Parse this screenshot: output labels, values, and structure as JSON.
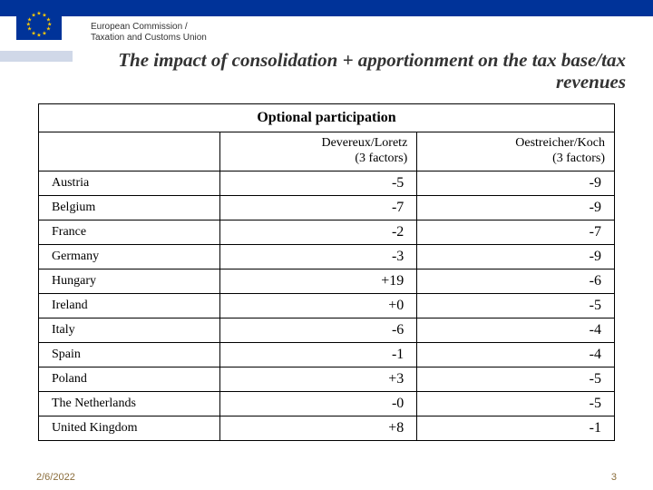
{
  "header": {
    "org_line1": "European Commission /",
    "org_line2": "Taxation and Customs Union",
    "title": "The impact of consolidation + apportionment on the tax base/tax revenues",
    "bar_color": "#003399",
    "flag_star_color": "#ffcc00"
  },
  "table": {
    "caption": "Optional participation",
    "columns": [
      {
        "label": "",
        "align": "left"
      },
      {
        "label": "Devereux/Loretz\n(3 factors)",
        "align": "right"
      },
      {
        "label": "Oestreicher/Koch\n(3 factors)",
        "align": "right"
      }
    ],
    "rows": [
      {
        "country": "Austria",
        "v1": "-5",
        "v2": "-9"
      },
      {
        "country": "Belgium",
        "v1": "-7",
        "v2": "-9"
      },
      {
        "country": "France",
        "v1": "-2",
        "v2": "-7"
      },
      {
        "country": "Germany",
        "v1": "-3",
        "v2": "-9"
      },
      {
        "country": "Hungary",
        "v1": "+19",
        "v2": "-6"
      },
      {
        "country": "Ireland",
        "v1": "+0",
        "v2": "-5"
      },
      {
        "country": "Italy",
        "v1": "-6",
        "v2": "-4"
      },
      {
        "country": "Spain",
        "v1": "-1",
        "v2": "-4"
      },
      {
        "country": "Poland",
        "v1": "+3",
        "v2": "-5"
      },
      {
        "country": "The Netherlands",
        "v1": "-0",
        "v2": "-5"
      },
      {
        "country": "United Kingdom",
        "v1": "+8",
        "v2": "-1"
      }
    ],
    "border_color": "#000000",
    "font_size_cell": 14,
    "font_size_value": 16
  },
  "footer": {
    "date": "2/6/2022",
    "page": "3",
    "color": "#8a6d3b"
  }
}
